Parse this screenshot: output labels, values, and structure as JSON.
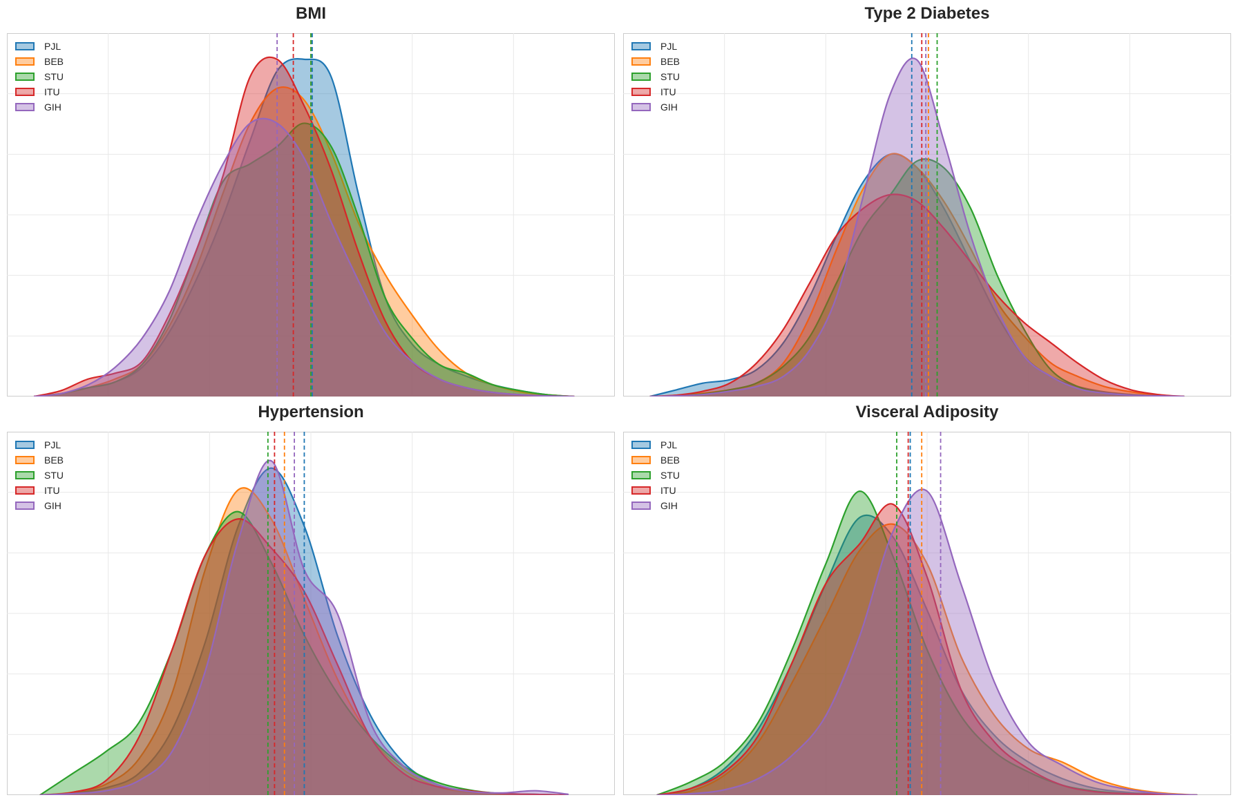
{
  "colors": {
    "PJL": "#1f77b4",
    "BEB": "#ff7f0e",
    "STU": "#2ca02c",
    "ITU": "#d62728",
    "GIH": "#9467bd"
  },
  "chart_data": [
    {
      "type": "area",
      "title": "BMI",
      "xlabel": "",
      "ylabel": "",
      "grid": true,
      "legend_placement": "top-left",
      "xlim": [
        -4.2,
        4.8
      ],
      "ylim": [
        0,
        0.625
      ],
      "x": [
        -3.8,
        -3.4,
        -3.0,
        -2.6,
        -2.2,
        -1.8,
        -1.4,
        -1.0,
        -0.6,
        -0.2,
        0.2,
        0.6,
        1.0,
        1.4,
        1.8,
        2.2,
        2.6,
        3.0,
        3.4,
        3.8,
        4.2
      ],
      "series": [
        {
          "name": "PJL",
          "mean": 0.32,
          "values": [
            0.0,
            0.005,
            0.015,
            0.025,
            0.05,
            0.11,
            0.2,
            0.31,
            0.44,
            0.56,
            0.58,
            0.55,
            0.35,
            0.17,
            0.09,
            0.055,
            0.035,
            0.02,
            0.01,
            0.003,
            0.0
          ]
        },
        {
          "name": "BEB",
          "mean": 0.3,
          "values": [
            0.0,
            0.005,
            0.015,
            0.03,
            0.055,
            0.12,
            0.22,
            0.35,
            0.47,
            0.53,
            0.51,
            0.42,
            0.3,
            0.21,
            0.14,
            0.08,
            0.04,
            0.02,
            0.008,
            0.003,
            0.0
          ]
        },
        {
          "name": "STU",
          "mean": 0.3,
          "values": [
            0.0,
            0.005,
            0.015,
            0.025,
            0.055,
            0.13,
            0.25,
            0.37,
            0.4,
            0.43,
            0.47,
            0.43,
            0.31,
            0.17,
            0.1,
            0.055,
            0.04,
            0.02,
            0.01,
            0.003,
            0.0
          ]
        },
        {
          "name": "ITU",
          "mean": 0.04,
          "values": [
            0.0,
            0.01,
            0.03,
            0.04,
            0.06,
            0.14,
            0.25,
            0.38,
            0.55,
            0.58,
            0.5,
            0.39,
            0.25,
            0.13,
            0.06,
            0.03,
            0.015,
            0.007,
            0.003,
            0.001,
            0.0
          ]
        },
        {
          "name": "GIH",
          "mean": -0.2,
          "values": [
            0.0,
            0.005,
            0.02,
            0.05,
            0.1,
            0.18,
            0.3,
            0.4,
            0.47,
            0.47,
            0.41,
            0.3,
            0.2,
            0.11,
            0.06,
            0.03,
            0.015,
            0.007,
            0.003,
            0.001,
            0.0
          ]
        }
      ]
    },
    {
      "type": "area",
      "title": "Type 2 Diabetes",
      "xlabel": "",
      "ylabel": "",
      "grid": true,
      "legend_placement": "top-left",
      "xlim": [
        -4.2,
        4.9
      ],
      "ylim": [
        0,
        0.54
      ],
      "x": [
        -3.8,
        -3.4,
        -3.0,
        -2.6,
        -2.2,
        -1.8,
        -1.4,
        -1.0,
        -0.6,
        -0.2,
        0.2,
        0.6,
        1.0,
        1.4,
        1.8,
        2.2,
        2.6,
        3.0,
        3.4,
        3.8,
        4.2
      ],
      "series": [
        {
          "name": "PJL",
          "mean": 0.12,
          "values": [
            0.0,
            0.01,
            0.02,
            0.025,
            0.04,
            0.08,
            0.15,
            0.24,
            0.32,
            0.36,
            0.34,
            0.28,
            0.2,
            0.12,
            0.06,
            0.03,
            0.015,
            0.007,
            0.003,
            0.001,
            0.0
          ]
        },
        {
          "name": "BEB",
          "mean": 0.37,
          "values": [
            0.0,
            0.002,
            0.005,
            0.01,
            0.02,
            0.05,
            0.12,
            0.22,
            0.31,
            0.36,
            0.34,
            0.29,
            0.22,
            0.14,
            0.09,
            0.05,
            0.03,
            0.015,
            0.007,
            0.002,
            0.0
          ]
        },
        {
          "name": "STU",
          "mean": 0.5,
          "values": [
            0.0,
            0.001,
            0.004,
            0.01,
            0.02,
            0.045,
            0.09,
            0.17,
            0.25,
            0.3,
            0.35,
            0.34,
            0.28,
            0.18,
            0.1,
            0.04,
            0.015,
            0.005,
            0.002,
            0.001,
            0.0
          ]
        },
        {
          "name": "ITU",
          "mean": 0.27,
          "values": [
            0.0,
            0.002,
            0.008,
            0.02,
            0.05,
            0.1,
            0.17,
            0.24,
            0.28,
            0.3,
            0.29,
            0.25,
            0.2,
            0.15,
            0.11,
            0.08,
            0.05,
            0.025,
            0.01,
            0.003,
            0.0
          ]
        },
        {
          "name": "GIH",
          "mean": 0.33,
          "values": [
            0.0,
            0.001,
            0.003,
            0.008,
            0.015,
            0.03,
            0.07,
            0.15,
            0.3,
            0.45,
            0.5,
            0.38,
            0.24,
            0.13,
            0.06,
            0.03,
            0.012,
            0.005,
            0.002,
            0.001,
            0.0
          ]
        }
      ]
    },
    {
      "type": "area",
      "title": "Hypertension",
      "xlabel": "",
      "ylabel": "",
      "grid": true,
      "legend_placement": "top-left",
      "xlim": [
        -4.0,
        5.2
      ],
      "ylim": [
        0,
        0.5
      ],
      "x": [
        -3.5,
        -3.0,
        -2.5,
        -2.0,
        -1.5,
        -1.0,
        -0.5,
        0.0,
        0.5,
        1.0,
        1.5,
        2.0,
        2.5,
        3.0,
        3.5,
        4.0,
        4.5
      ],
      "series": [
        {
          "name": "PJL",
          "mean": 0.5,
          "values": [
            0.0,
            0.003,
            0.01,
            0.03,
            0.09,
            0.21,
            0.37,
            0.45,
            0.37,
            0.22,
            0.11,
            0.045,
            0.015,
            0.005,
            0.002,
            0.001,
            0.0
          ]
        },
        {
          "name": "BEB",
          "mean": 0.2,
          "values": [
            0.0,
            0.004,
            0.015,
            0.05,
            0.14,
            0.31,
            0.42,
            0.38,
            0.27,
            0.16,
            0.08,
            0.035,
            0.012,
            0.004,
            0.001,
            0.0,
            0.0
          ]
        },
        {
          "name": "STU",
          "mean": -0.05,
          "values": [
            0.0,
            0.03,
            0.06,
            0.1,
            0.2,
            0.33,
            0.39,
            0.32,
            0.22,
            0.14,
            0.08,
            0.04,
            0.018,
            0.007,
            0.002,
            0.001,
            0.0
          ]
        },
        {
          "name": "ITU",
          "mean": 0.05,
          "values": [
            0.0,
            0.004,
            0.02,
            0.08,
            0.2,
            0.33,
            0.38,
            0.34,
            0.28,
            0.18,
            0.08,
            0.03,
            0.012,
            0.006,
            0.002,
            0.001,
            0.0
          ]
        },
        {
          "name": "GIH",
          "mean": 0.35,
          "values": [
            0.0,
            0.002,
            0.006,
            0.02,
            0.06,
            0.17,
            0.35,
            0.46,
            0.31,
            0.25,
            0.1,
            0.04,
            0.015,
            0.005,
            0.003,
            0.006,
            0.001
          ]
        }
      ]
    },
    {
      "type": "area",
      "title": "Visceral Adiposity",
      "xlabel": "",
      "ylabel": "",
      "grid": true,
      "legend_placement": "top-left",
      "xlim": [
        -4.0,
        5.0
      ],
      "ylim": [
        0,
        0.55
      ],
      "x": [
        -3.5,
        -3.0,
        -2.5,
        -2.0,
        -1.5,
        -1.0,
        -0.5,
        0.0,
        0.5,
        1.0,
        1.5,
        2.0,
        2.5,
        3.0,
        3.5,
        4.0,
        4.5
      ],
      "series": [
        {
          "name": "PJL",
          "mean": 0.25,
          "values": [
            0.0,
            0.01,
            0.04,
            0.1,
            0.2,
            0.32,
            0.42,
            0.39,
            0.28,
            0.16,
            0.09,
            0.05,
            0.025,
            0.01,
            0.004,
            0.001,
            0.0
          ]
        },
        {
          "name": "BEB",
          "mean": 0.42,
          "values": [
            0.0,
            0.006,
            0.03,
            0.08,
            0.17,
            0.27,
            0.37,
            0.41,
            0.35,
            0.21,
            0.12,
            0.07,
            0.05,
            0.025,
            0.01,
            0.003,
            0.0
          ]
        },
        {
          "name": "STU",
          "mean": 0.05,
          "values": [
            0.0,
            0.02,
            0.05,
            0.11,
            0.22,
            0.35,
            0.46,
            0.36,
            0.22,
            0.12,
            0.065,
            0.035,
            0.015,
            0.006,
            0.002,
            0.001,
            0.0
          ]
        },
        {
          "name": "ITU",
          "mean": 0.22,
          "values": [
            0.0,
            0.01,
            0.035,
            0.09,
            0.2,
            0.32,
            0.38,
            0.44,
            0.33,
            0.16,
            0.08,
            0.04,
            0.015,
            0.005,
            0.002,
            0.001,
            0.0
          ]
        },
        {
          "name": "GIH",
          "mean": 0.7,
          "values": [
            0.0,
            0.002,
            0.008,
            0.025,
            0.06,
            0.12,
            0.24,
            0.4,
            0.46,
            0.32,
            0.17,
            0.08,
            0.045,
            0.02,
            0.008,
            0.002,
            0.0
          ]
        }
      ]
    }
  ]
}
